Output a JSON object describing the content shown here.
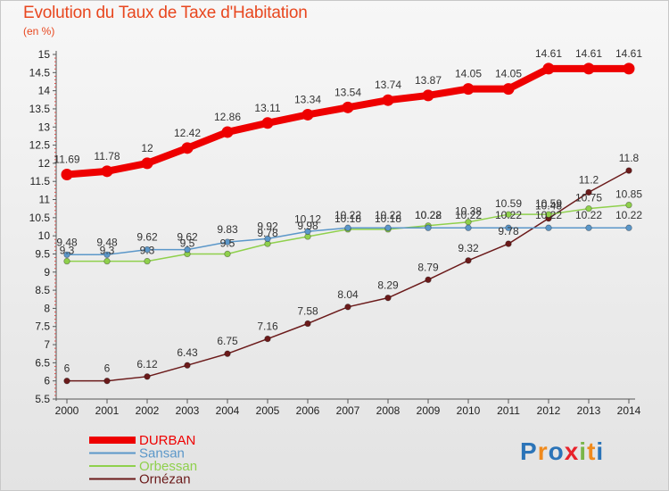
{
  "title": "Evolution du Taux de Taxe d'Habitation",
  "subtitle": "(en %)",
  "logo": {
    "letters": [
      "P",
      "r",
      "o",
      "x",
      "i",
      "t",
      "i"
    ],
    "colors": [
      "#2b74b8",
      "#f08a1c",
      "#2b74b8",
      "#e8222b",
      "#7ab648",
      "#f08a1c",
      "#2b74b8"
    ]
  },
  "chart_data": {
    "type": "line",
    "title": "Evolution du Taux de Taxe d'Habitation",
    "subtitle": "(en %)",
    "x": [
      "2000",
      "2001",
      "2002",
      "2003",
      "2004",
      "2005",
      "2006",
      "2007",
      "2008",
      "2009",
      "2010",
      "2011",
      "2012",
      "2013",
      "2014"
    ],
    "ylim": [
      5.5,
      15
    ],
    "yticks": [
      "5.5",
      "6",
      "6.5",
      "7",
      "7.5",
      "8",
      "8.5",
      "9",
      "9.5",
      "10",
      "10.5",
      "11",
      "11.5",
      "12",
      "12.5",
      "13",
      "13.5",
      "14",
      "14.5",
      "15"
    ],
    "grid": false,
    "legend": "bottom-left",
    "series": [
      {
        "name": "DURBAN",
        "color": "#ee0000",
        "values": [
          11.69,
          11.78,
          12,
          12.42,
          12.86,
          13.11,
          13.34,
          13.54,
          13.74,
          13.87,
          14.05,
          14.05,
          14.61,
          14.61,
          14.61
        ],
        "labels": [
          "11.69",
          "11.78",
          "12",
          "12.42",
          "12.86",
          "13.11",
          "13.34",
          "13.54",
          "13.74",
          "13.87",
          "14.05",
          "14.05",
          "14.61",
          "14.61",
          "14.61"
        ]
      },
      {
        "name": "Sansan",
        "color": "#5b97c9",
        "values": [
          9.48,
          9.48,
          9.62,
          9.62,
          9.83,
          9.92,
          10.12,
          10.22,
          10.22,
          10.22,
          10.22,
          10.22,
          10.22,
          10.22,
          10.22
        ],
        "labels": [
          "9.48",
          "9.48",
          "9.62",
          "9.62",
          "9.83",
          "9.92",
          "10.12",
          "10.22",
          "10.22",
          "10.22",
          "10.22",
          "10.22",
          "10.22",
          "10.22",
          "10.22"
        ]
      },
      {
        "name": "Orbessan",
        "color": "#8fd04c",
        "values": [
          9.3,
          9.3,
          9.3,
          9.5,
          9.5,
          9.78,
          9.98,
          10.18,
          10.18,
          10.28,
          10.38,
          10.59,
          10.59,
          10.75,
          10.85
        ],
        "labels": [
          "9.3",
          "9.3",
          "9.3",
          "9.5",
          "9.5",
          "9.78",
          "9.98",
          "10.18",
          "10.18",
          "10.28",
          "10.38",
          "10.59",
          "10.59",
          "10.75",
          "10.85"
        ]
      },
      {
        "name": "Ornézan",
        "color": "#6b1a1a",
        "values": [
          6,
          6,
          6.12,
          6.43,
          6.75,
          7.16,
          7.58,
          8.04,
          8.29,
          8.79,
          9.32,
          9.78,
          10.48,
          11.2,
          11.8
        ],
        "labels": [
          "6",
          "6",
          "6.12",
          "6.43",
          "6.75",
          "7.16",
          "7.58",
          "8.04",
          "8.29",
          "8.79",
          "9.32",
          "9.78",
          "10.48",
          "11.2",
          "11.8"
        ]
      }
    ]
  }
}
